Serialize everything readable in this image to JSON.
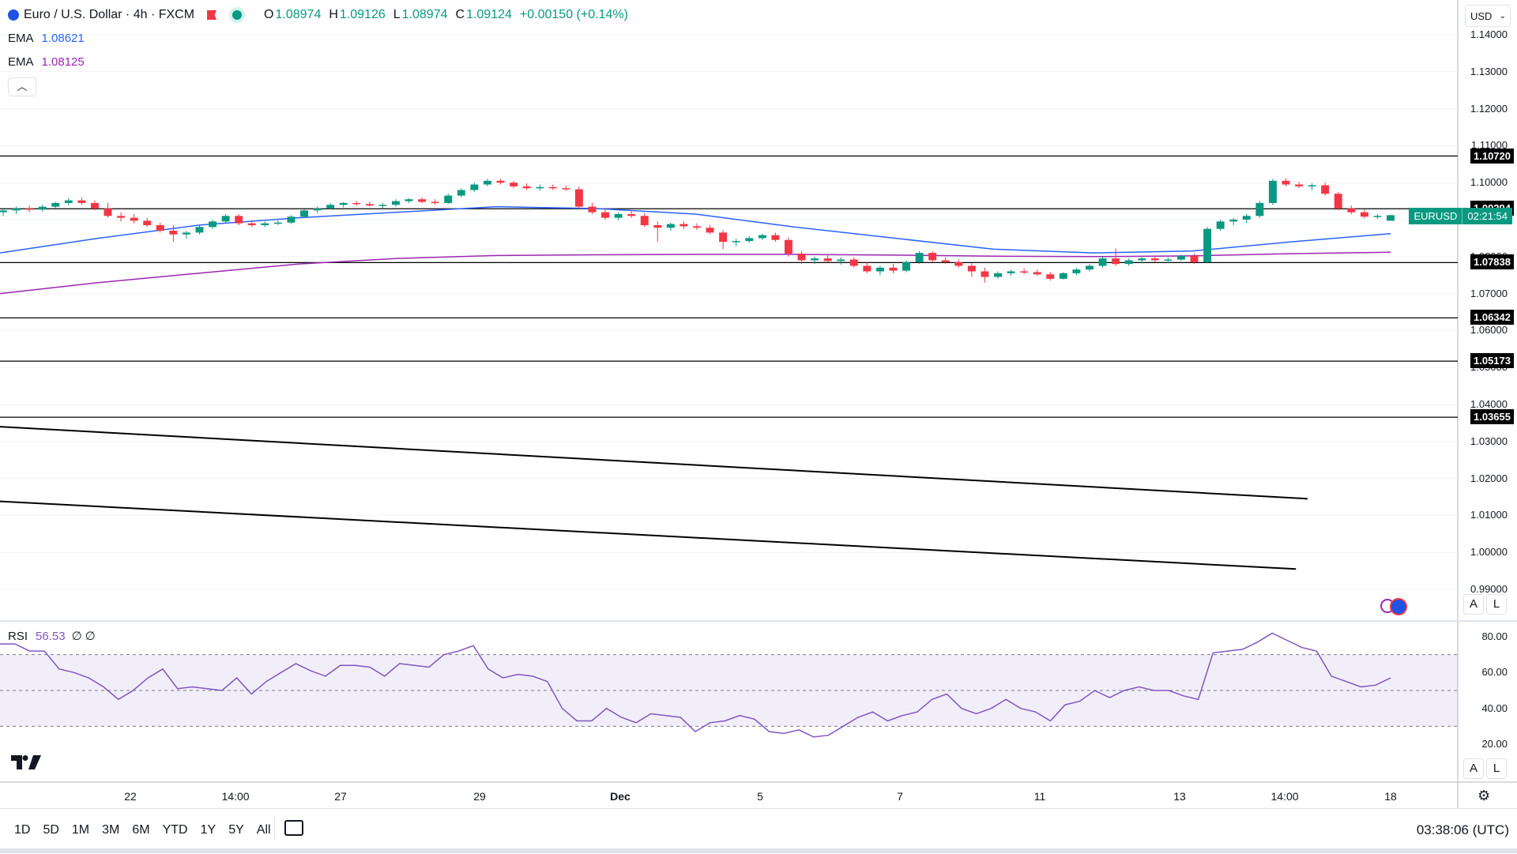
{
  "header": {
    "symbol_title": "Euro / U.S. Dollar · 4h · FXCM",
    "ohlc": {
      "open_label": "O",
      "open": "1.08974",
      "high_label": "H",
      "high": "1.09126",
      "low_label": "L",
      "low": "1.08974",
      "close_label": "C",
      "close": "1.09124",
      "change": "+0.00150 (+0.14%)"
    },
    "up_color": "#089981",
    "down_color": "#f23645"
  },
  "indicators": {
    "ema1": {
      "label": "EMA",
      "value": "1.08621",
      "color": "#2962ff"
    },
    "ema2": {
      "label": "EMA",
      "value": "1.08125",
      "color": "#9c27b0"
    },
    "collapse_icon": "chevron-up-icon"
  },
  "currency_select": {
    "value": "USD"
  },
  "price_axis": {
    "ticks": [
      "1.14000",
      "1.13000",
      "1.12000",
      "1.11000",
      "1.10000",
      "1.09000",
      "1.08000",
      "1.07000",
      "1.06000",
      "1.05000",
      "1.04000",
      "1.03000",
      "1.02000",
      "1.01000",
      "1.00000",
      "0.99000"
    ],
    "horizontal_levels": [
      "1.10720",
      "1.09294",
      "1.07838",
      "1.06342",
      "1.05173",
      "1.03655"
    ],
    "symbol_tag": "EURUSD",
    "countdown": "02:21:54",
    "auto_label": "A",
    "log_label": "L"
  },
  "rsi": {
    "label": "RSI",
    "value": "56.53",
    "extra": "∅ ∅",
    "ticks": [
      "80.00",
      "60.00",
      "40.00",
      "20.00"
    ],
    "upper_band": 70,
    "lower_band": 30,
    "color": "#7e57c2"
  },
  "time_axis": {
    "labels": [
      "22",
      "14:00",
      "27",
      "29",
      "Dec",
      "5",
      "7",
      "11",
      "13",
      "14:00",
      "18"
    ]
  },
  "toolbar": {
    "ranges": [
      "1D",
      "5D",
      "1M",
      "3M",
      "6M",
      "YTD",
      "1Y",
      "5Y",
      "All"
    ],
    "clock": "03:38:06 (UTC)"
  },
  "chart_data": {
    "type": "candlestick",
    "y_range": [
      0.985,
      1.148
    ],
    "candles": [
      [
        1.092,
        1.0928,
        1.091,
        1.0925
      ],
      [
        1.0925,
        1.0935,
        1.0915,
        1.093
      ],
      [
        1.093,
        1.0938,
        1.092,
        1.0927
      ],
      [
        1.0927,
        1.094,
        1.0922,
        1.0935
      ],
      [
        1.0935,
        1.0948,
        1.093,
        1.0945
      ],
      [
        1.0945,
        1.0958,
        1.0938,
        1.0952
      ],
      [
        1.0952,
        1.096,
        1.094,
        1.0945
      ],
      [
        1.0945,
        1.0952,
        1.0925,
        1.093
      ],
      [
        1.093,
        1.0945,
        1.0905,
        1.091
      ],
      [
        1.091,
        1.092,
        1.0895,
        1.0905
      ],
      [
        1.0905,
        1.0915,
        1.089,
        1.0897
      ],
      [
        1.0897,
        1.0905,
        1.088,
        1.0885
      ],
      [
        1.0885,
        1.0892,
        1.0865,
        1.087
      ],
      [
        1.087,
        1.0885,
        1.084,
        1.086
      ],
      [
        1.086,
        1.087,
        1.0848,
        1.0865
      ],
      [
        1.0865,
        1.0885,
        1.086,
        1.088
      ],
      [
        1.088,
        1.09,
        1.0875,
        1.0895
      ],
      [
        1.0895,
        1.0915,
        1.089,
        1.091
      ],
      [
        1.091,
        1.0915,
        1.0885,
        1.089
      ],
      [
        1.089,
        1.0898,
        1.088,
        1.0885
      ],
      [
        1.0885,
        1.0895,
        1.088,
        1.089
      ],
      [
        1.089,
        1.0898,
        1.0885,
        1.0892
      ],
      [
        1.0892,
        1.0912,
        1.0888,
        1.0908
      ],
      [
        1.0908,
        1.0928,
        1.0905,
        1.0925
      ],
      [
        1.0925,
        1.0935,
        1.0918,
        1.093
      ],
      [
        1.093,
        1.0945,
        1.0928,
        1.094
      ],
      [
        1.094,
        1.0948,
        1.0933,
        1.0945
      ],
      [
        1.0945,
        1.095,
        1.0938,
        1.0942
      ],
      [
        1.0942,
        1.0948,
        1.0935,
        1.0938
      ],
      [
        1.0938,
        1.0945,
        1.093,
        1.094
      ],
      [
        1.094,
        1.0955,
        1.0935,
        1.095
      ],
      [
        1.095,
        1.0958,
        1.0945,
        1.0955
      ],
      [
        1.0955,
        1.096,
        1.0945,
        1.0948
      ],
      [
        1.0948,
        1.0955,
        1.094,
        1.0945
      ],
      [
        1.0945,
        1.097,
        1.0942,
        1.0965
      ],
      [
        1.0965,
        1.0985,
        1.096,
        1.098
      ],
      [
        1.098,
        1.1,
        1.0975,
        1.0995
      ],
      [
        1.0995,
        1.101,
        1.099,
        1.1005
      ],
      [
        1.1005,
        1.101,
        1.0995,
        1.1
      ],
      [
        1.1,
        1.1005,
        1.0985,
        1.099
      ],
      [
        1.099,
        1.0998,
        1.098,
        1.0985
      ],
      [
        1.0985,
        1.0995,
        1.0978,
        1.0988
      ],
      [
        1.0988,
        1.0995,
        1.098,
        1.0985
      ],
      [
        1.0985,
        1.0992,
        1.0978,
        1.0982
      ],
      [
        1.0982,
        1.099,
        1.093,
        1.0935
      ],
      [
        1.0935,
        1.0945,
        1.0915,
        1.092
      ],
      [
        1.092,
        1.093,
        1.09,
        1.0905
      ],
      [
        1.0905,
        1.092,
        1.0898,
        1.0915
      ],
      [
        1.0915,
        1.0925,
        1.0905,
        1.091
      ],
      [
        1.091,
        1.0918,
        1.088,
        1.0885
      ],
      [
        1.0885,
        1.0895,
        1.084,
        1.0878
      ],
      [
        1.0878,
        1.0892,
        1.087,
        1.0888
      ],
      [
        1.0888,
        1.0895,
        1.0875,
        1.0882
      ],
      [
        1.0882,
        1.089,
        1.0872,
        1.0878
      ],
      [
        1.0878,
        1.0885,
        1.086,
        1.0865
      ],
      [
        1.0865,
        1.0872,
        1.082,
        1.084
      ],
      [
        1.084,
        1.0848,
        1.0828,
        1.0842
      ],
      [
        1.0842,
        1.0855,
        1.0838,
        1.085
      ],
      [
        1.085,
        1.0862,
        1.0845,
        1.0858
      ],
      [
        1.0858,
        1.0865,
        1.084,
        1.0845
      ],
      [
        1.0845,
        1.0852,
        1.08,
        1.0808
      ],
      [
        1.0808,
        1.0815,
        1.078,
        1.079
      ],
      [
        1.079,
        1.08,
        1.078,
        1.0795
      ],
      [
        1.0795,
        1.0805,
        1.0785,
        1.0788
      ],
      [
        1.0788,
        1.0798,
        1.0778,
        1.0792
      ],
      [
        1.0792,
        1.0798,
        1.077,
        1.0775
      ],
      [
        1.0775,
        1.0785,
        1.0755,
        1.076
      ],
      [
        1.076,
        1.0775,
        1.075,
        1.077
      ],
      [
        1.077,
        1.078,
        1.0755,
        1.0762
      ],
      [
        1.0762,
        1.079,
        1.0758,
        1.0785
      ],
      [
        1.0785,
        1.0815,
        1.078,
        1.081
      ],
      [
        1.081,
        1.0815,
        1.0785,
        1.079
      ],
      [
        1.079,
        1.0798,
        1.078,
        1.0785
      ],
      [
        1.0785,
        1.0792,
        1.077,
        1.0775
      ],
      [
        1.0775,
        1.0782,
        1.0745,
        1.076
      ],
      [
        1.076,
        1.077,
        1.073,
        1.0745
      ],
      [
        1.0745,
        1.076,
        1.074,
        1.0755
      ],
      [
        1.0755,
        1.0765,
        1.0748,
        1.076
      ],
      [
        1.076,
        1.0768,
        1.0752,
        1.0758
      ],
      [
        1.0758,
        1.0765,
        1.0748,
        1.0752
      ],
      [
        1.0752,
        1.0758,
        1.0735,
        1.074
      ],
      [
        1.074,
        1.0758,
        1.0738,
        1.0755
      ],
      [
        1.0755,
        1.077,
        1.075,
        1.0765
      ],
      [
        1.0765,
        1.078,
        1.076,
        1.0775
      ],
      [
        1.0775,
        1.08,
        1.077,
        1.0795
      ],
      [
        1.0795,
        1.0822,
        1.0775,
        1.078
      ],
      [
        1.078,
        1.0795,
        1.0775,
        1.079
      ],
      [
        1.079,
        1.0798,
        1.0782,
        1.0795
      ],
      [
        1.0795,
        1.08,
        1.0785,
        1.079
      ],
      [
        1.079,
        1.0798,
        1.0783,
        1.0792
      ],
      [
        1.0792,
        1.0805,
        1.0788,
        1.0802
      ],
      [
        1.0802,
        1.0808,
        1.078,
        1.0785
      ],
      [
        1.0785,
        1.088,
        1.0782,
        1.0875
      ],
      [
        1.0875,
        1.09,
        1.087,
        1.0895
      ],
      [
        1.0895,
        1.0905,
        1.0885,
        1.09
      ],
      [
        1.09,
        1.0915,
        1.089,
        1.091
      ],
      [
        1.091,
        1.095,
        1.0905,
        1.0945
      ],
      [
        1.0945,
        1.101,
        1.094,
        1.1005
      ],
      [
        1.1005,
        1.1012,
        1.099,
        1.0995
      ],
      [
        1.0995,
        1.1002,
        1.0985,
        1.099
      ],
      [
        1.099,
        1.0998,
        1.098,
        1.0993
      ],
      [
        1.0993,
        1.1,
        1.0965,
        1.097
      ],
      [
        1.097,
        1.0975,
        1.0925,
        1.093
      ],
      [
        1.093,
        1.0938,
        1.0915,
        1.092
      ],
      [
        1.092,
        1.0928,
        1.0903,
        1.0908
      ],
      [
        1.0908,
        1.0915,
        1.0902,
        1.091
      ],
      [
        1.0897,
        1.0913,
        1.0897,
        1.0912
      ]
    ],
    "ema1": [
      1.081,
      1.085,
      1.0885,
      1.0905,
      1.092,
      1.0935,
      1.093,
      1.0915,
      1.088,
      1.085,
      1.082,
      1.081,
      1.0815,
      1.084,
      1.0862
    ],
    "ema2": [
      1.07,
      1.073,
      1.0755,
      1.078,
      1.0795,
      1.0803,
      1.0805,
      1.0806,
      1.0806,
      1.0804,
      1.0801,
      1.08,
      1.0802,
      1.0808,
      1.0812
    ],
    "rsi": [
      76,
      76,
      72,
      72,
      62,
      60,
      57,
      52,
      45,
      50,
      57,
      62,
      51,
      52,
      51,
      50,
      57,
      48,
      55,
      60,
      65,
      61,
      58,
      64,
      64,
      63,
      58,
      65,
      64,
      63,
      70,
      72,
      75,
      62,
      57,
      59,
      58,
      55,
      40,
      33,
      33,
      40,
      35,
      32,
      37,
      36,
      35,
      27,
      32,
      33,
      36,
      34,
      27,
      26,
      28,
      24,
      25,
      30,
      35,
      38,
      33,
      36,
      38,
      45,
      48,
      40,
      37,
      40,
      45,
      40,
      38,
      33,
      42,
      44,
      50,
      46,
      50,
      52,
      50,
      50,
      47,
      45,
      71,
      72,
      73,
      77,
      82,
      78,
      74,
      72,
      58,
      55,
      52,
      53,
      57
    ],
    "trendlines": [
      {
        "from": [
          1.034,
          0
        ],
        "to": [
          1.0145,
          0.897
        ]
      },
      {
        "from": [
          1.0138,
          0
        ],
        "to": [
          0.9955,
          0.889
        ]
      }
    ]
  }
}
